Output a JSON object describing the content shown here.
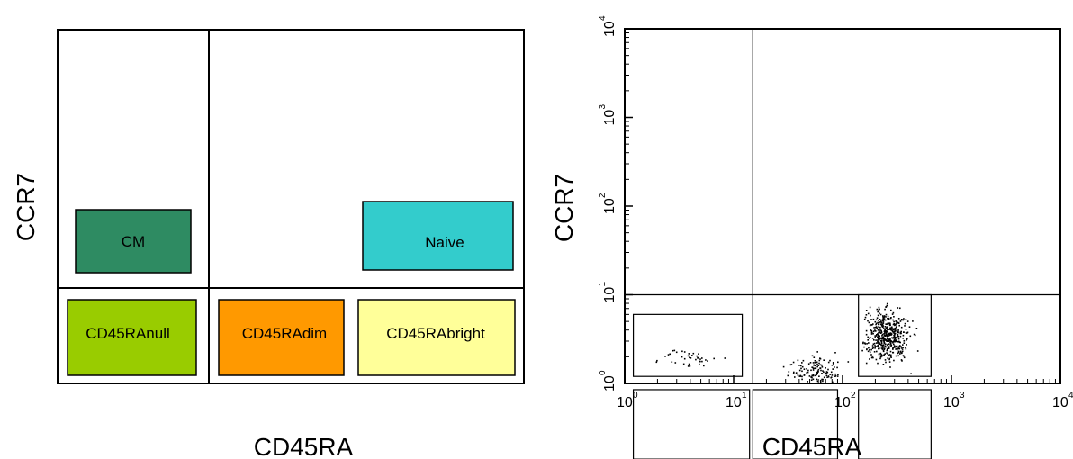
{
  "chart_data": [
    {
      "type": "other",
      "xlabel": "CD45RA",
      "ylabel": "CCR7",
      "quadrant_split": {
        "x": "dim",
        "y": "low"
      },
      "gates": [
        {
          "label": "CM",
          "color": "#2e8b62"
        },
        {
          "label": "Naive",
          "color": "#33cccc"
        },
        {
          "label": "CD45RAnull",
          "color": "#99cc00"
        },
        {
          "label": "CD45RAdim",
          "color": "#ff9900"
        },
        {
          "label": "CD45RAbright",
          "color": "#ffff99"
        }
      ]
    },
    {
      "type": "scatter",
      "xlabel": "CD45RA",
      "ylabel": "CCR7",
      "xscale": "log",
      "yscale": "log",
      "xlim": [
        1,
        10000
      ],
      "ylim": [
        1,
        10000
      ],
      "x_ticks": [
        {
          "base": "10",
          "exp": "0"
        },
        {
          "base": "10",
          "exp": "1"
        },
        {
          "base": "10",
          "exp": "2"
        },
        {
          "base": "10",
          "exp": "3"
        },
        {
          "base": "10",
          "exp": "4"
        }
      ],
      "y_ticks": [
        {
          "base": "10",
          "exp": "0"
        },
        {
          "base": "10",
          "exp": "1"
        },
        {
          "base": "10",
          "exp": "2"
        },
        {
          "base": "10",
          "exp": "3"
        },
        {
          "base": "10",
          "exp": "4"
        }
      ],
      "quadrant_lines": {
        "x": 15,
        "y": 10
      },
      "gates": [
        {
          "x": [
            1.2,
            12
          ],
          "y": [
            1.2,
            6
          ],
          "label": ""
        },
        {
          "x": [
            1.2,
            14
          ],
          "y": [
            0.14,
            0.85
          ],
          "label": ""
        },
        {
          "x": [
            15,
            90
          ],
          "y": [
            0.14,
            0.85
          ],
          "label": ""
        },
        {
          "x": [
            140,
            650
          ],
          "y": [
            0.14,
            0.85
          ],
          "label": ""
        },
        {
          "x": [
            140,
            650
          ],
          "y": [
            1.2,
            10
          ],
          "label": ""
        }
      ],
      "populations": [
        {
          "x_log": [
            0.5,
            1.0
          ],
          "y_log": [
            -0.9,
            -0.15
          ],
          "n": 700
        },
        {
          "x_log": [
            1.2,
            1.85
          ],
          "y_log": [
            -0.8,
            -0.1
          ],
          "n": 260
        },
        {
          "x_log": [
            2.15,
            2.7
          ],
          "y_log": [
            -0.8,
            -0.1
          ],
          "n": 180
        },
        {
          "x_log": [
            2.1,
            2.7
          ],
          "y_log": [
            0.1,
            1.0
          ],
          "n": 520
        },
        {
          "x_log": [
            1.4,
            2.1
          ],
          "y_log": [
            -0.1,
            0.4
          ],
          "n": 140
        },
        {
          "x_log": [
            0.1,
            1.1
          ],
          "y_log": [
            0.1,
            0.5
          ],
          "n": 40
        }
      ]
    }
  ]
}
